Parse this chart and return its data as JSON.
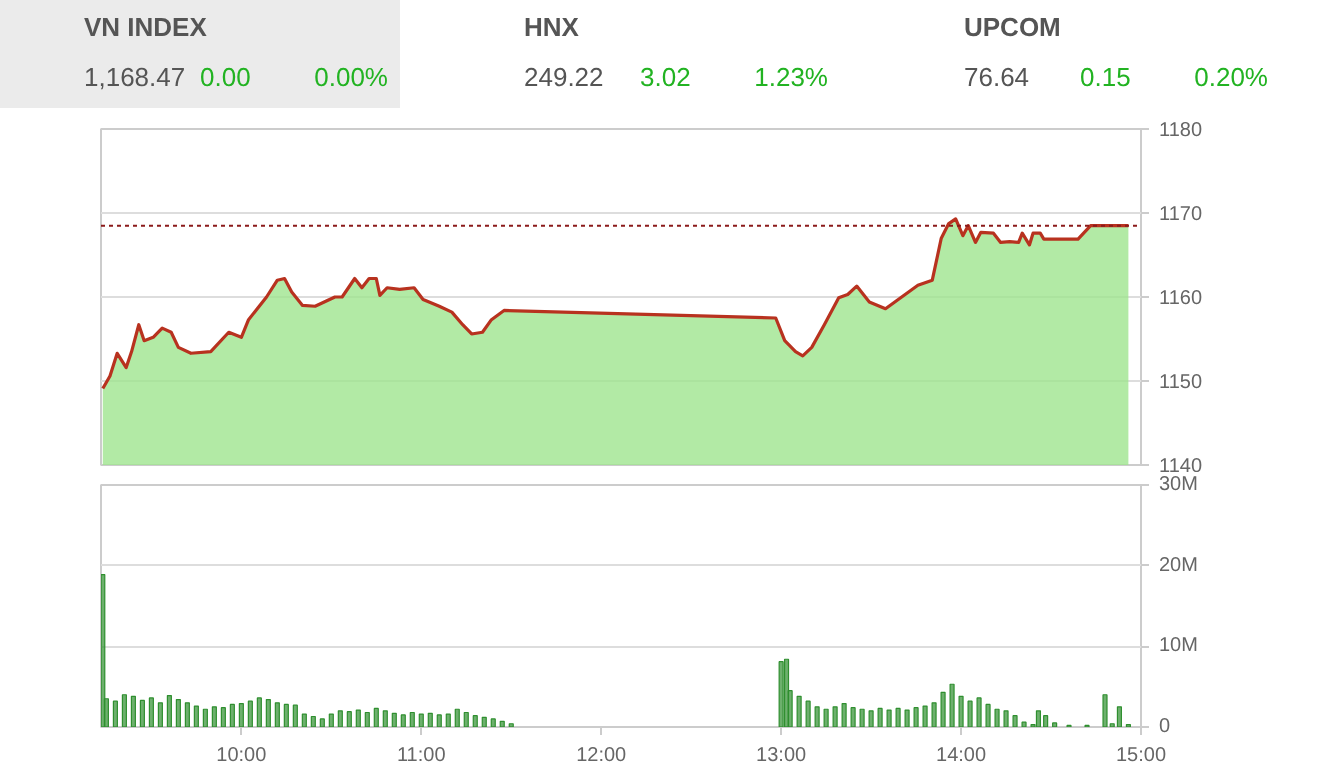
{
  "chart_data": [
    {
      "type": "other",
      "annotations": [
        "VN INDEX",
        "1,168.47",
        "0.00",
        "0.00%",
        "HNX",
        "249.22",
        "3.02",
        "1.23%",
        "UPCOM",
        "76.64",
        "0.15",
        "0.20%"
      ]
    },
    {
      "type": "area",
      "x": [
        9.23,
        9.27,
        9.31,
        9.36,
        9.39,
        9.43,
        9.46,
        9.51,
        9.56,
        9.61,
        9.65,
        9.72,
        9.83,
        9.93,
        10.0,
        10.04,
        10.14,
        10.2,
        10.24,
        10.28,
        10.34,
        10.41,
        10.52,
        10.56,
        10.63,
        10.67,
        10.71,
        10.75,
        10.77,
        10.81,
        10.88,
        10.96,
        11.01,
        11.1,
        11.17,
        11.23,
        11.28,
        11.34,
        11.39,
        11.46,
        12.97,
        13.02,
        13.08,
        13.12,
        13.17,
        13.24,
        13.32,
        13.37,
        13.42,
        13.49,
        13.58,
        13.67,
        13.76,
        13.84,
        13.89,
        13.93,
        13.97,
        14.01,
        14.04,
        14.08,
        14.11,
        14.18,
        14.22,
        14.27,
        14.32,
        14.34,
        14.38,
        14.4,
        14.44,
        14.46,
        14.65,
        14.72,
        14.93
      ],
      "series": [
        {
          "color": "#9fe58f",
          "values": [
            1149.1,
            1150.6,
            1153.3,
            1151.6,
            1153.5,
            1156.7,
            1154.8,
            1155.2,
            1156.3,
            1155.8,
            1154.0,
            1153.3,
            1153.5,
            1155.8,
            1155.2,
            1157.3,
            1160.0,
            1162.0,
            1162.2,
            1160.6,
            1159.0,
            1158.9,
            1160.0,
            1160.0,
            1162.2,
            1161.1,
            1162.2,
            1162.2,
            1160.2,
            1161.1,
            1160.9,
            1161.1,
            1159.7,
            1158.9,
            1158.2,
            1156.7,
            1155.6,
            1155.8,
            1157.3,
            1158.4,
            1157.5,
            1154.8,
            1153.5,
            1153.0,
            1154.0,
            1156.7,
            1159.9,
            1160.3,
            1161.3,
            1159.4,
            1158.6,
            1160.0,
            1161.4,
            1162.0,
            1167.0,
            1168.7,
            1169.3,
            1167.3,
            1168.5,
            1166.5,
            1167.7,
            1167.6,
            1166.5,
            1166.6,
            1166.5,
            1167.6,
            1166.2,
            1167.6,
            1167.6,
            1166.9,
            1166.9,
            1168.5,
            1168.5
          ]
        },
        {
          "type": "line",
          "color": "#b8321f",
          "values": [
            1149.1,
            1150.6,
            1153.3,
            1151.6,
            1153.5,
            1156.7,
            1154.8,
            1155.2,
            1156.3,
            1155.8,
            1154.0,
            1153.3,
            1153.5,
            1155.8,
            1155.2,
            1157.3,
            1160.0,
            1162.0,
            1162.2,
            1160.6,
            1159.0,
            1158.9,
            1160.0,
            1160.0,
            1162.2,
            1161.1,
            1162.2,
            1162.2,
            1160.2,
            1161.1,
            1160.9,
            1161.1,
            1159.7,
            1158.9,
            1158.2,
            1156.7,
            1155.6,
            1155.8,
            1157.3,
            1158.4,
            1157.5,
            1154.8,
            1153.5,
            1153.0,
            1154.0,
            1156.7,
            1159.9,
            1160.3,
            1161.3,
            1159.4,
            1158.6,
            1160.0,
            1161.4,
            1162.0,
            1167.0,
            1168.7,
            1169.3,
            1167.3,
            1168.5,
            1166.5,
            1167.7,
            1167.6,
            1166.5,
            1166.6,
            1166.5,
            1167.6,
            1166.2,
            1167.6,
            1167.6,
            1166.9,
            1166.9,
            1168.5,
            1168.5
          ]
        }
      ],
      "xlim": [
        9.22,
        15
      ],
      "ylim": [
        1140,
        1180
      ],
      "yticks": [
        1140,
        1150,
        1160,
        1170,
        1180
      ],
      "grid": "y",
      "tick_labels": "y",
      "ref_lines": [
        {
          "axis": "y",
          "value": 1168.47,
          "color": "#8b1a1a",
          "line_style": "dotted"
        }
      ]
    },
    {
      "type": "bar",
      "x": [
        9.23,
        9.25,
        9.3,
        9.35,
        9.4,
        9.45,
        9.5,
        9.55,
        9.6,
        9.65,
        9.7,
        9.75,
        9.8,
        9.85,
        9.9,
        9.95,
        10.0,
        10.05,
        10.1,
        10.15,
        10.2,
        10.25,
        10.3,
        10.35,
        10.4,
        10.45,
        10.5,
        10.55,
        10.6,
        10.65,
        10.7,
        10.75,
        10.8,
        10.85,
        10.9,
        10.95,
        11.0,
        11.05,
        11.1,
        11.15,
        11.2,
        11.25,
        11.3,
        11.35,
        11.4,
        11.45,
        11.5,
        13.0,
        13.03,
        13.05,
        13.1,
        13.15,
        13.2,
        13.25,
        13.3,
        13.35,
        13.4,
        13.45,
        13.5,
        13.55,
        13.6,
        13.65,
        13.7,
        13.75,
        13.8,
        13.85,
        13.9,
        13.95,
        14.0,
        14.05,
        14.1,
        14.15,
        14.2,
        14.25,
        14.3,
        14.35,
        14.4,
        14.43,
        14.47,
        14.52,
        14.6,
        14.7,
        14.8,
        14.84,
        14.88,
        14.93
      ],
      "series": [
        {
          "color": "#2f8f2f",
          "values": [
            18.9,
            3.5,
            3.2,
            4.0,
            3.8,
            3.3,
            3.6,
            3.0,
            3.9,
            3.4,
            3.0,
            2.6,
            2.2,
            2.5,
            2.4,
            2.8,
            2.9,
            3.2,
            3.6,
            3.4,
            3.0,
            2.8,
            2.7,
            1.6,
            1.3,
            1.0,
            1.6,
            2.0,
            1.9,
            2.1,
            1.8,
            2.3,
            2.0,
            1.7,
            1.5,
            1.8,
            1.6,
            1.7,
            1.5,
            1.6,
            2.2,
            1.8,
            1.4,
            1.2,
            1.0,
            0.7,
            0.4,
            8.1,
            8.4,
            4.5,
            3.8,
            3.2,
            2.5,
            2.2,
            2.5,
            2.9,
            2.4,
            2.2,
            2.0,
            2.3,
            2.1,
            2.3,
            2.1,
            2.4,
            2.6,
            3.0,
            4.3,
            5.3,
            3.8,
            3.2,
            3.6,
            2.8,
            2.2,
            2.0,
            1.4,
            0.6,
            0.3,
            2.0,
            1.4,
            0.5,
            0.2,
            0.2,
            4.0,
            0.4,
            2.5,
            0.3
          ]
        }
      ],
      "xlim": [
        9.22,
        15
      ],
      "xticks": [
        {
          "value": 10,
          "label": "10:00"
        },
        {
          "value": 11,
          "label": "11:00"
        },
        {
          "value": 12,
          "label": "12:00"
        },
        {
          "value": 13,
          "label": "13:00"
        },
        {
          "value": 14,
          "label": "14:00"
        },
        {
          "value": 15,
          "label": "15:00"
        }
      ],
      "ylim": [
        0,
        30
      ],
      "yticks": [
        0,
        {
          "value": 10,
          "label": "10M"
        },
        {
          "value": 20,
          "label": "20M"
        },
        {
          "value": 30,
          "label": "30M"
        }
      ],
      "grid": "y"
    }
  ]
}
